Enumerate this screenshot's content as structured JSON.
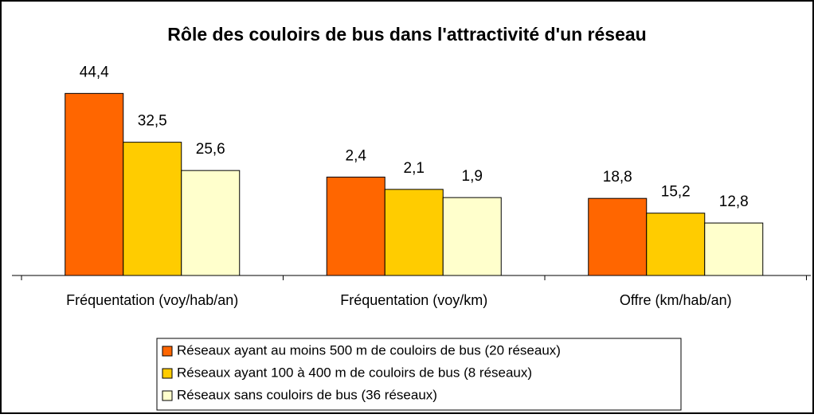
{
  "chart_data": {
    "type": "bar",
    "title": "Rôle des couloirs de bus dans l'attractivité d'un réseau",
    "categories": [
      "Fréquentation (voy/hab/an)",
      "Fréquentation (voy/km)",
      "Offre (km/hab/an)"
    ],
    "series": [
      {
        "name": "Réseaux ayant au moins 500 m de couloirs de bus (20 réseaux)",
        "color": "#ff6600",
        "values": [
          44.4,
          2.4,
          18.8
        ],
        "value_labels": [
          "44,4",
          "2,4",
          "18,8"
        ]
      },
      {
        "name": "Réseaux ayant 100 à 400 m de couloirs de bus (8 réseaux)",
        "color": "#ffcc00",
        "values": [
          32.5,
          2.1,
          15.2
        ],
        "value_labels": [
          "32,5",
          "2,1",
          "15,2"
        ]
      },
      {
        "name": "Réseaux sans couloirs de bus (36 réseaux)",
        "color": "#ffffcc",
        "values": [
          25.6,
          1.9,
          12.8
        ],
        "value_labels": [
          "25,6",
          "1,9",
          "12,8"
        ]
      }
    ]
  }
}
